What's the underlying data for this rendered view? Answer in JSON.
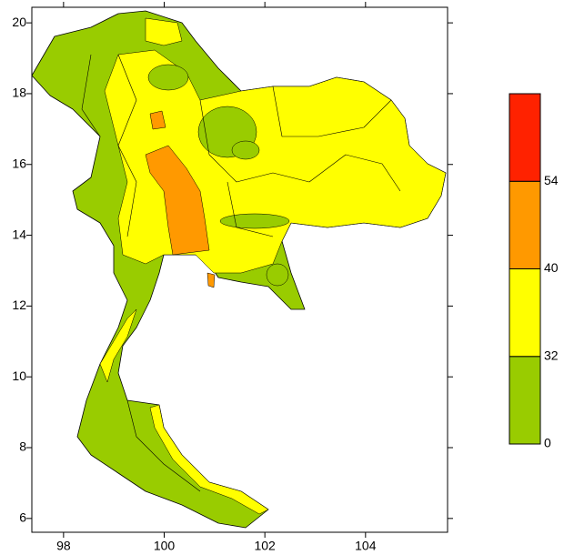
{
  "map": {
    "xlim": [
      97.37,
      105.63
    ],
    "ylim": [
      5.61,
      20.44
    ],
    "xticks": [
      98,
      100,
      102,
      104
    ],
    "yticks": [
      6,
      8,
      10,
      12,
      14,
      16,
      18,
      20
    ],
    "colorbar": {
      "levels": [
        0,
        32,
        40,
        54
      ],
      "colors": [
        "#99cc00",
        "#ffff00",
        "#ff9900",
        "#ff2200"
      ]
    }
  }
}
